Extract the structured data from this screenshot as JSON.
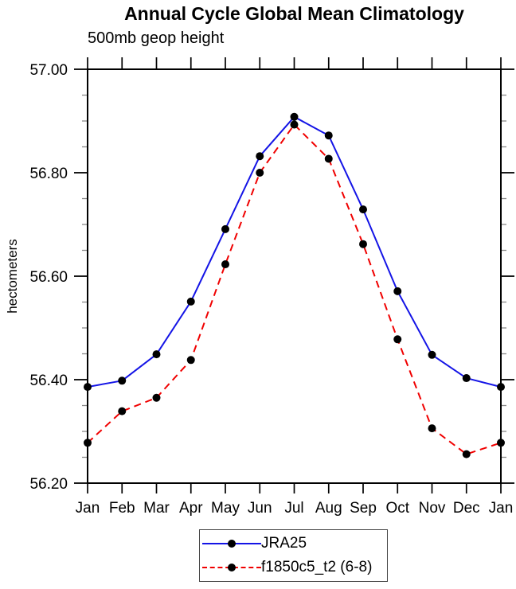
{
  "title": "Annual Cycle Global Mean Climatology",
  "subtitle": "500mb geop height",
  "chart_data": {
    "type": "line",
    "title": "Annual Cycle Global Mean Climatology",
    "subtitle": "500mb geop height",
    "ylabel": "hectometers",
    "categories": [
      "Jan",
      "Feb",
      "Mar",
      "Apr",
      "May",
      "Jun",
      "Jul",
      "Aug",
      "Sep",
      "Oct",
      "Nov",
      "Dec",
      "Jan"
    ],
    "series": [
      {
        "name": "JRA25",
        "color": "#1414e6",
        "line_style": "solid",
        "marker": "filled-circle",
        "marker_color": "#000000",
        "values": [
          56.386,
          56.398,
          56.449,
          56.551,
          56.691,
          56.832,
          56.908,
          56.872,
          56.729,
          56.571,
          56.448,
          56.403,
          56.386
        ]
      },
      {
        "name": "f1850c5_t2 (6-8)",
        "color": "#f00000",
        "line_style": "dashed",
        "marker": "filled-circle",
        "marker_color": "#000000",
        "values": [
          56.278,
          56.339,
          56.365,
          56.438,
          56.623,
          56.8,
          56.893,
          56.827,
          56.662,
          56.478,
          56.306,
          56.256,
          56.278
        ]
      }
    ],
    "ylim": [
      56.2,
      57.0
    ],
    "yticks_major": [
      56.2,
      56.4,
      56.6,
      56.8,
      57.0
    ],
    "ytick_minor_step": 0.05,
    "ytick_label_format": "2dp",
    "grid": false,
    "frame": true,
    "tick_direction": "out",
    "legend_position": "bottom-center",
    "axis_color": "#000000",
    "minor_tick_color": "#888888"
  },
  "legend": {
    "entries": [
      {
        "label": "JRA25"
      },
      {
        "label": "f1850c5_t2 (6-8)"
      }
    ]
  }
}
